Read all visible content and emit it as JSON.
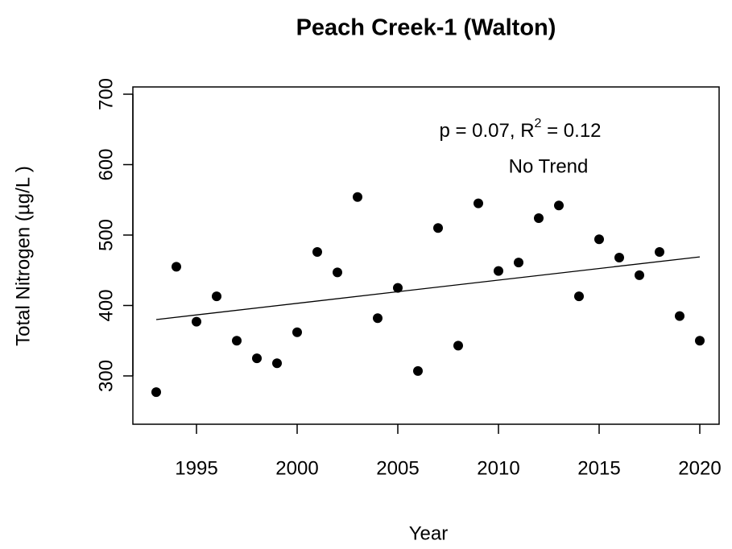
{
  "chart_data": {
    "type": "scatter",
    "title": "Peach Creek-1 (Walton)",
    "x_label": "Year",
    "y_label": "Total Nitrogen (µg/L )",
    "annotation": {
      "parts": [
        "p = 0.07, R",
        "2",
        " = 0.12"
      ],
      "note": "No Trend"
    },
    "x": [
      1993,
      1994,
      1995,
      1996,
      1997,
      1998,
      1999,
      2000,
      2001,
      2002,
      2003,
      2004,
      2005,
      2006,
      2007,
      2008,
      2009,
      2010,
      2011,
      2012,
      2013,
      2014,
      2015,
      2016,
      2017,
      2018,
      2019,
      2020
    ],
    "series": [
      {
        "name": "Total Nitrogen",
        "color": "#000000",
        "values": [
          277,
          455,
          377,
          413,
          350,
          325,
          318,
          362,
          476,
          447,
          554,
          382,
          425,
          307,
          510,
          343,
          545,
          449,
          461,
          524,
          542,
          413,
          494,
          468,
          443,
          476,
          385,
          350
        ]
      }
    ],
    "trend": {
      "x": [
        1993,
        2020
      ],
      "values": [
        380,
        469
      ],
      "color": "#000000"
    },
    "xlim": [
      1991.84,
      2020.96
    ],
    "ylim": [
      231.4,
      710.3
    ],
    "xticks": [
      1995,
      2000,
      2005,
      2010,
      2015,
      2020
    ],
    "yticks": [
      300,
      400,
      500,
      600,
      700
    ]
  }
}
